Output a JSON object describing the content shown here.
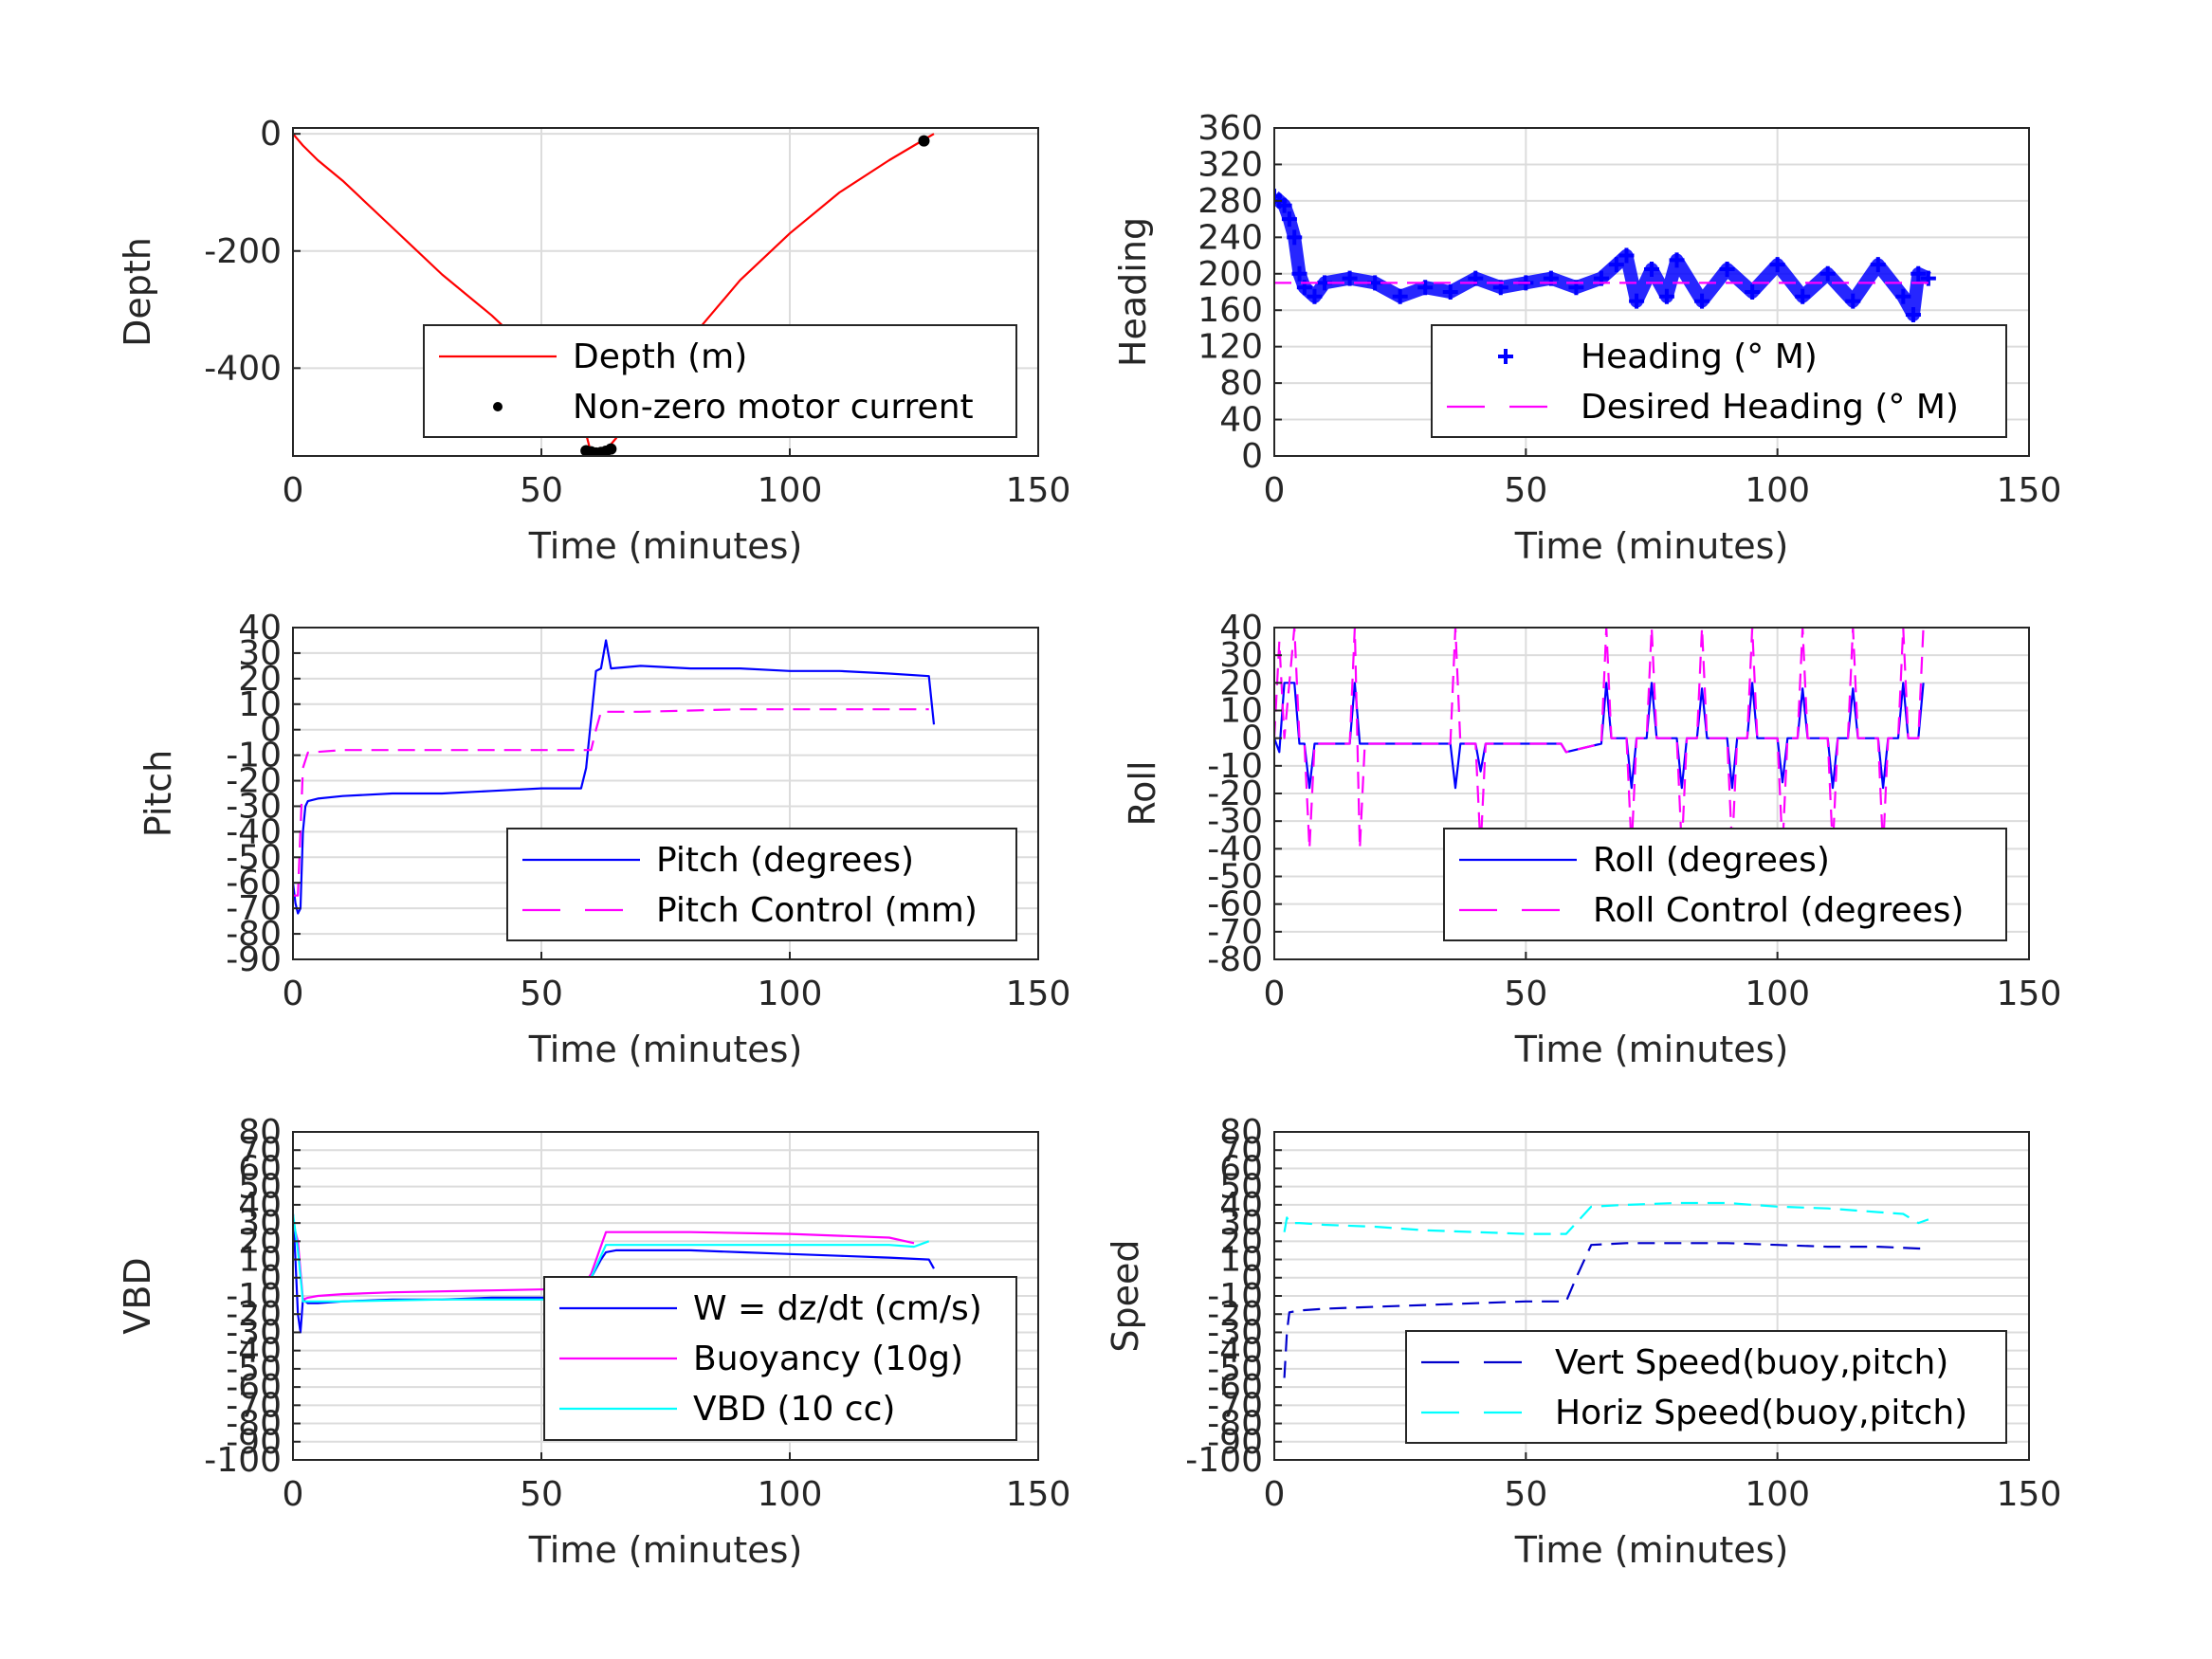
{
  "colors": {
    "red": "#ff0000",
    "blue": "#0000ff",
    "magenta": "#ff00ff",
    "cyan": "#00ffff",
    "darkblue": "#0000cc",
    "grid": "#dcdcdc",
    "axis": "#262626"
  },
  "chart_data": [
    {
      "id": "depth",
      "type": "line",
      "xlabel": "Time (minutes)",
      "ylabel": "Depth",
      "xlim": [
        0,
        150
      ],
      "ylim": [
        -550,
        10
      ],
      "xticks": [
        0,
        50,
        100,
        150
      ],
      "yticks": [
        0,
        -200,
        -400
      ],
      "xtick_labels": [
        "0",
        "50",
        "100",
        "150"
      ],
      "ytick_labels": [
        "0",
        "-200",
        "-400"
      ],
      "grid": true,
      "legend_position": "bottom-right",
      "series": [
        {
          "name": "Depth (m)",
          "style": "line",
          "color": "#ff0000",
          "x": [
            0,
            2,
            5,
            10,
            20,
            30,
            40,
            50,
            55,
            58,
            60,
            62,
            63,
            65,
            70,
            80,
            90,
            100,
            110,
            120,
            125,
            129
          ],
          "y": [
            0,
            -20,
            -45,
            -80,
            -160,
            -240,
            -310,
            -390,
            -440,
            -480,
            -545,
            -545,
            -540,
            -520,
            -450,
            -350,
            -250,
            -170,
            -100,
            -45,
            -20,
            0
          ]
        },
        {
          "name": "Non-zero motor current",
          "style": "points",
          "color": "#000000",
          "x": [
            59,
            60,
            61,
            62,
            63,
            64,
            127
          ],
          "y": [
            -541,
            -543,
            -545,
            -544,
            -542,
            -538,
            -12
          ]
        }
      ]
    },
    {
      "id": "heading",
      "type": "scatter",
      "xlabel": "Time (minutes)",
      "ylabel": "Heading",
      "xlim": [
        0,
        150
      ],
      "ylim": [
        0,
        360
      ],
      "xticks": [
        0,
        50,
        100,
        150
      ],
      "yticks": [
        0,
        40,
        80,
        120,
        160,
        200,
        240,
        280,
        320,
        360
      ],
      "xtick_labels": [
        "0",
        "50",
        "100",
        "150"
      ],
      "ytick_labels": [
        "0",
        "40",
        "80",
        "120",
        "160",
        "200",
        "240",
        "280",
        "320",
        "360"
      ],
      "grid": true,
      "legend_position": "bottom-right",
      "series": [
        {
          "name": "Heading (° M)",
          "style": "plus",
          "color": "#0000ff",
          "x": [
            0,
            1,
            2,
            3,
            4,
            5,
            6,
            8,
            10,
            15,
            20,
            25,
            30,
            35,
            40,
            45,
            50,
            55,
            60,
            65,
            68,
            70,
            72,
            75,
            78,
            80,
            85,
            90,
            95,
            100,
            105,
            110,
            115,
            120,
            125,
            127,
            128,
            130
          ],
          "y": [
            285,
            280,
            275,
            260,
            240,
            200,
            185,
            175,
            190,
            195,
            190,
            175,
            185,
            180,
            195,
            185,
            190,
            195,
            185,
            195,
            210,
            220,
            170,
            205,
            175,
            215,
            170,
            205,
            180,
            210,
            175,
            200,
            170,
            210,
            175,
            155,
            200,
            195
          ]
        },
        {
          "name": "Desired Heading (° M)",
          "style": "dashed",
          "color": "#ff00ff",
          "x": [
            0,
            130
          ],
          "y": [
            190,
            190
          ]
        }
      ]
    },
    {
      "id": "pitch",
      "type": "line",
      "xlabel": "Time (minutes)",
      "ylabel": "Pitch",
      "xlim": [
        0,
        150
      ],
      "ylim": [
        -90,
        40
      ],
      "xticks": [
        0,
        50,
        100,
        150
      ],
      "yticks": [
        40,
        30,
        20,
        10,
        0,
        -10,
        -20,
        -30,
        -40,
        -50,
        -60,
        -70,
        -80,
        -90
      ],
      "xtick_labels": [
        "0",
        "50",
        "100",
        "150"
      ],
      "ytick_labels": [
        "40",
        "30",
        "20",
        "10",
        "0",
        "-10",
        "-20",
        "-30",
        "-40",
        "-50",
        "-60",
        "-70",
        "-80",
        "-90"
      ],
      "grid": true,
      "legend_position": "bottom-right",
      "series": [
        {
          "name": "Pitch (degrees)",
          "style": "line",
          "color": "#0000ff",
          "x": [
            0,
            0.5,
            1,
            1.5,
            2,
            2.5,
            3,
            5,
            10,
            20,
            30,
            40,
            50,
            58,
            59,
            61,
            62,
            63,
            64,
            70,
            80,
            90,
            100,
            110,
            120,
            128,
            129
          ],
          "y": [
            -60,
            -68,
            -72,
            -70,
            -40,
            -30,
            -28,
            -27,
            -26,
            -25,
            -25,
            -24,
            -23,
            -23,
            -15,
            23,
            24,
            35,
            24,
            25,
            24,
            24,
            23,
            23,
            22,
            21,
            2
          ]
        },
        {
          "name": "Pitch Control (mm)",
          "style": "dashed",
          "color": "#ff00ff",
          "x": [
            0,
            1,
            2,
            3,
            10,
            30,
            50,
            60,
            61,
            62,
            70,
            90,
            110,
            128
          ],
          "y": [
            -65,
            -65,
            -15,
            -9,
            -8,
            -8,
            -8,
            -8,
            0,
            7,
            7,
            8,
            8,
            8
          ]
        }
      ]
    },
    {
      "id": "roll",
      "type": "line",
      "xlabel": "Time (minutes)",
      "ylabel": "Roll",
      "xlim": [
        0,
        150
      ],
      "ylim": [
        -80,
        40
      ],
      "xticks": [
        0,
        50,
        100,
        150
      ],
      "yticks": [
        40,
        30,
        20,
        10,
        0,
        -10,
        -20,
        -30,
        -40,
        -50,
        -60,
        -70,
        -80
      ],
      "xtick_labels": [
        "0",
        "50",
        "100",
        "150"
      ],
      "ytick_labels": [
        "40",
        "30",
        "20",
        "10",
        "0",
        "-10",
        "-20",
        "-30",
        "-40",
        "-50",
        "-60",
        "-70",
        "-80"
      ],
      "grid": true,
      "legend_position": "bottom-right",
      "series": [
        {
          "name": "Roll (degrees)",
          "style": "line",
          "color": "#0000ff",
          "x": [
            0,
            1,
            2,
            4,
            5,
            6,
            7,
            8,
            9,
            15,
            16,
            17,
            18,
            35,
            36,
            37,
            38,
            40,
            41,
            42,
            57,
            58,
            65,
            66,
            67,
            68,
            70,
            71,
            72,
            74,
            75,
            76,
            77,
            80,
            81,
            82,
            84,
            85,
            86,
            88,
            90,
            91,
            92,
            94,
            95,
            96,
            98,
            100,
            101,
            102,
            104,
            105,
            106,
            108,
            110,
            111,
            112,
            114,
            115,
            116,
            118,
            120,
            121,
            122,
            124,
            125,
            126,
            128,
            129
          ],
          "y": [
            0,
            -5,
            20,
            20,
            -2,
            -2,
            -18,
            -2,
            -2,
            -2,
            20,
            -2,
            -2,
            -2,
            -18,
            -2,
            -2,
            -2,
            -12,
            -2,
            -2,
            -5,
            -2,
            20,
            0,
            0,
            0,
            -18,
            0,
            0,
            20,
            0,
            0,
            0,
            -18,
            0,
            0,
            18,
            0,
            0,
            0,
            -18,
            0,
            0,
            20,
            0,
            0,
            0,
            -16,
            0,
            0,
            18,
            0,
            0,
            0,
            -18,
            0,
            0,
            18,
            0,
            0,
            0,
            -18,
            0,
            0,
            20,
            0,
            0,
            20
          ]
        },
        {
          "name": "Roll Control (degrees)",
          "style": "dashed",
          "color": "#ff00ff",
          "x": [
            0,
            1,
            2,
            4,
            5,
            6,
            7,
            8,
            9,
            15,
            16,
            17,
            18,
            35,
            36,
            37,
            38,
            40,
            41,
            42,
            57,
            58,
            65,
            66,
            67,
            68,
            70,
            71,
            72,
            74,
            75,
            76,
            77,
            80,
            81,
            82,
            84,
            85,
            86,
            88,
            90,
            91,
            92,
            94,
            95,
            96,
            98,
            100,
            101,
            102,
            104,
            105,
            106,
            108,
            110,
            111,
            112,
            114,
            115,
            116,
            118,
            120,
            121,
            122,
            124,
            125,
            126,
            128,
            129
          ],
          "y": [
            0,
            35,
            0,
            40,
            0,
            -2,
            -40,
            -2,
            -2,
            -2,
            40,
            -40,
            -2,
            -2,
            40,
            -2,
            -2,
            -2,
            -40,
            -2,
            -2,
            -5,
            -2,
            40,
            0,
            0,
            0,
            -40,
            0,
            0,
            40,
            0,
            0,
            0,
            -40,
            0,
            0,
            40,
            0,
            0,
            0,
            -40,
            0,
            0,
            40,
            0,
            0,
            0,
            -40,
            0,
            0,
            40,
            0,
            0,
            0,
            -40,
            0,
            0,
            40,
            0,
            0,
            0,
            -40,
            0,
            0,
            40,
            0,
            0,
            40
          ]
        }
      ]
    },
    {
      "id": "vbd",
      "type": "line",
      "xlabel": "Time (minutes)",
      "ylabel": "VBD",
      "xlim": [
        0,
        150
      ],
      "ylim": [
        -100,
        80
      ],
      "xticks": [
        0,
        50,
        100,
        150
      ],
      "yticks": [
        80,
        70,
        60,
        50,
        40,
        30,
        20,
        10,
        0,
        -10,
        -20,
        -30,
        -40,
        -50,
        -60,
        -70,
        -80,
        -90,
        -100
      ],
      "xtick_labels": [
        "0",
        "50",
        "100",
        "150"
      ],
      "ytick_labels": [
        "80",
        "70",
        "60",
        "50",
        "40",
        "30",
        "20",
        "10",
        "0",
        "-10",
        "-20",
        "-30",
        "-40",
        "-50",
        "-60",
        "-70",
        "-80",
        "-90",
        "-100"
      ],
      "grid": true,
      "legend_position": "bottom-right",
      "series": [
        {
          "name": "W = dz/dt (cm/s)",
          "style": "line",
          "color": "#0000ff",
          "x": [
            0,
            0.5,
            1,
            1.5,
            2,
            3,
            5,
            10,
            20,
            30,
            40,
            50,
            58,
            59,
            62,
            63,
            65,
            70,
            80,
            90,
            100,
            110,
            120,
            128,
            129
          ],
          "y": [
            35,
            10,
            -20,
            -30,
            -12,
            -14,
            -14,
            -13,
            -12,
            -12,
            -11,
            -11,
            -11,
            -5,
            10,
            14,
            15,
            15,
            15,
            14,
            13,
            12,
            11,
            10,
            5
          ]
        },
        {
          "name": "Buoyancy (10g)",
          "style": "line",
          "color": "#ff00ff",
          "x": [
            0,
            1,
            2,
            3,
            5,
            10,
            20,
            40,
            58,
            60,
            63,
            65,
            80,
            100,
            120,
            125
          ],
          "y": [
            30,
            20,
            -12,
            -11,
            -10,
            -9,
            -8,
            -7,
            -6,
            2,
            25,
            25,
            25,
            24,
            22,
            19
          ]
        },
        {
          "name": "VBD (10 cc)",
          "style": "line",
          "color": "#00ffff",
          "x": [
            0,
            1,
            2,
            3,
            5,
            10,
            30,
            58,
            60,
            63,
            65,
            80,
            100,
            120,
            125,
            128
          ],
          "y": [
            35,
            15,
            -13,
            -13,
            -13,
            -13,
            -12,
            -12,
            0,
            18,
            18,
            18,
            18,
            18,
            17,
            20
          ]
        }
      ]
    },
    {
      "id": "speed",
      "type": "line",
      "xlabel": "Time (minutes)",
      "ylabel": "Speed",
      "xlim": [
        0,
        150
      ],
      "ylim": [
        -100,
        80
      ],
      "xticks": [
        0,
        50,
        100,
        150
      ],
      "yticks": [
        80,
        70,
        60,
        50,
        40,
        30,
        20,
        10,
        0,
        -10,
        -20,
        -30,
        -40,
        -50,
        -60,
        -70,
        -80,
        -90,
        -100
      ],
      "xtick_labels": [
        "0",
        "50",
        "100",
        "150"
      ],
      "ytick_labels": [
        "80",
        "70",
        "60",
        "50",
        "40",
        "30",
        "20",
        "10",
        "0",
        "-10",
        "-20",
        "-30",
        "-40",
        "-50",
        "-60",
        "-70",
        "-80",
        "-90",
        "-100"
      ],
      "grid": true,
      "legend_position": "bottom-right",
      "series": [
        {
          "name": "Vert Speed(buoy,pitch)",
          "style": "dashed",
          "color": "#0000cc",
          "x": [
            2,
            2.5,
            3,
            5,
            10,
            20,
            30,
            40,
            50,
            58,
            60,
            63,
            70,
            80,
            90,
            100,
            110,
            120,
            128,
            130
          ],
          "y": [
            -55,
            -30,
            -19,
            -18,
            -17,
            -16,
            -15,
            -14,
            -13,
            -13,
            0,
            18,
            19,
            19,
            19,
            18,
            17,
            17,
            16,
            16
          ]
        },
        {
          "name": "Horiz Speed(buoy,pitch)",
          "style": "dashed",
          "color": "#00ffff",
          "x": [
            2,
            2.5,
            3,
            5,
            10,
            20,
            30,
            40,
            50,
            58,
            60,
            63,
            70,
            80,
            90,
            100,
            110,
            120,
            125,
            128,
            130
          ],
          "y": [
            25,
            33,
            30,
            30,
            29,
            28,
            26,
            25,
            24,
            24,
            30,
            39,
            40,
            41,
            41,
            39,
            38,
            36,
            35,
            30,
            32
          ]
        }
      ]
    }
  ]
}
